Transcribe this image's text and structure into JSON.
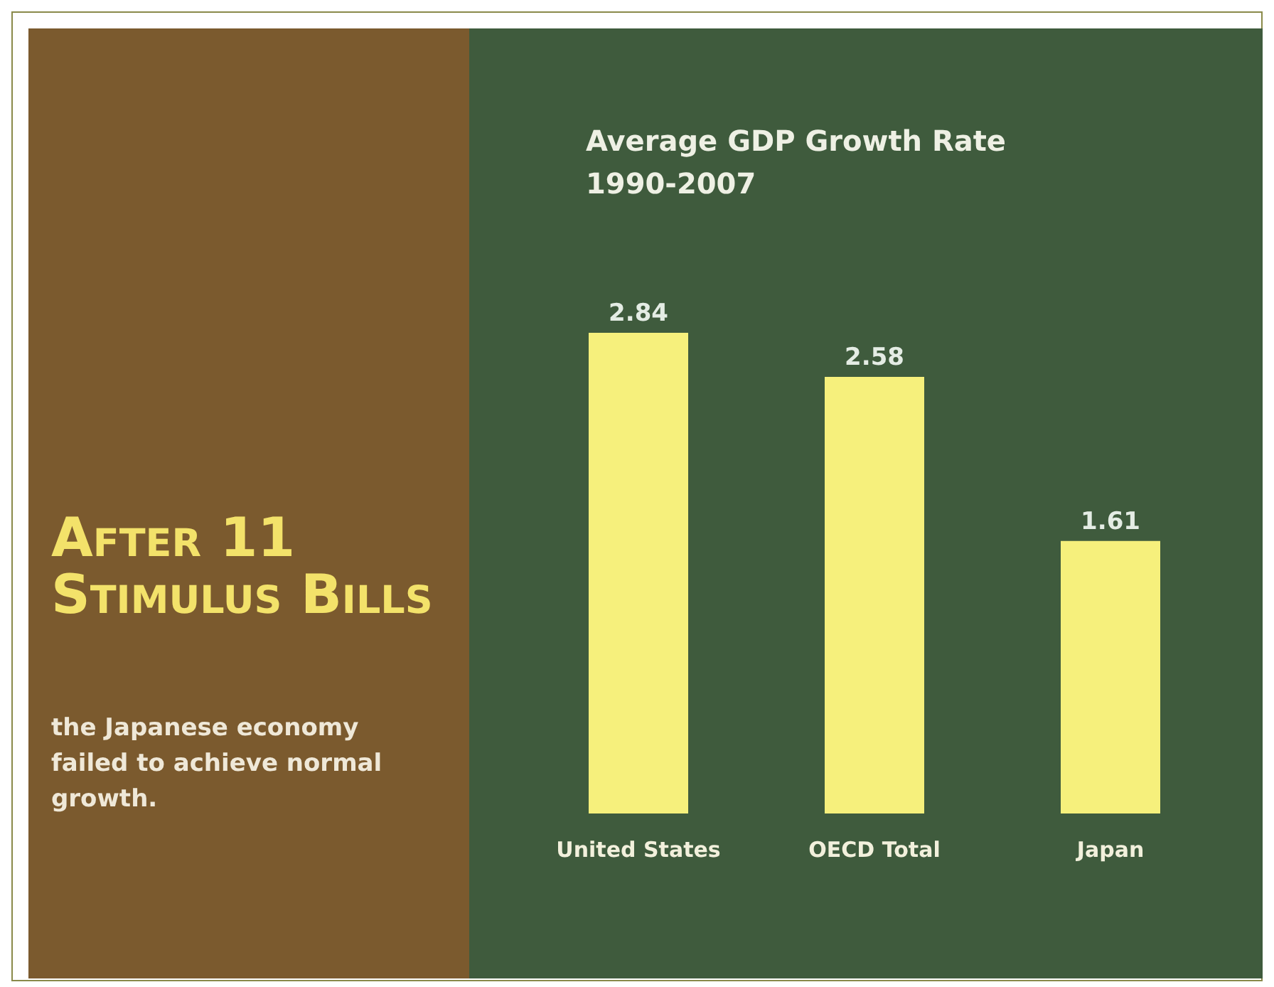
{
  "chart_data": {
    "type": "bar",
    "title": "Average GDP Growth Rate 1990-2007",
    "annotations": [
      "After 11 Stimulus Bills",
      "the Japanese economy failed to achieve normal growth."
    ],
    "categories": [
      "United States",
      "OECD Total",
      "Japan"
    ],
    "values": [
      2.84,
      2.58,
      1.61
    ],
    "color": "#f6f07c",
    "data_labels": true,
    "grid": false
  }
}
